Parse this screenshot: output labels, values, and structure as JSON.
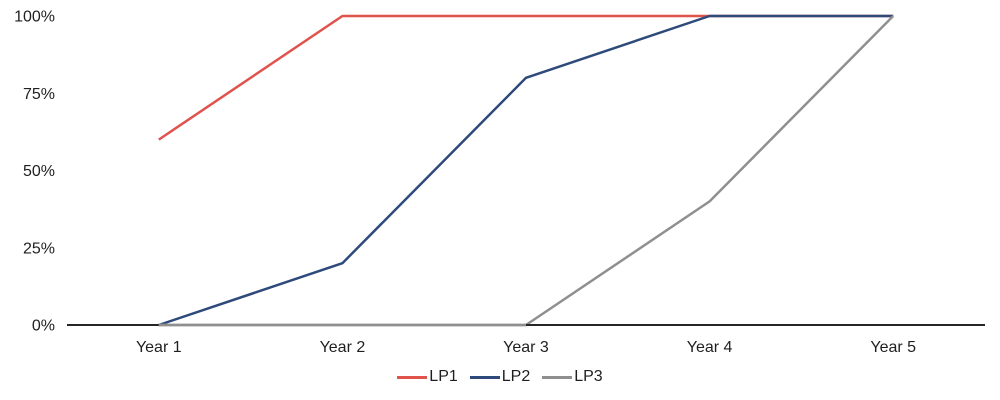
{
  "chart_data": {
    "type": "line",
    "title": "",
    "xlabel": "",
    "ylabel": "",
    "categories": [
      "Year 1",
      "Year 2",
      "Year 3",
      "Year 4",
      "Year 5"
    ],
    "series": [
      {
        "name": "LP1",
        "color": "#E0534C",
        "values": [
          60,
          100,
          100,
          100,
          100
        ]
      },
      {
        "name": "LP2",
        "color": "#2E4A7B",
        "values": [
          0,
          20,
          80,
          100,
          100
        ]
      },
      {
        "name": "LP3",
        "color": "#8F8F8F",
        "values": [
          0,
          0,
          0,
          40,
          100
        ]
      }
    ],
    "ylim": [
      0,
      100
    ],
    "y_ticks": [
      0,
      25,
      50,
      75,
      100
    ],
    "y_tick_labels": [
      "0%",
      "25%",
      "50%",
      "75%",
      "100%"
    ],
    "grid": false,
    "legend_position": "bottom",
    "legend_entries": [
      "LP1",
      "LP2",
      "LP3"
    ]
  },
  "colors": {
    "background": "#FFFFFF",
    "axis_line": "#262626",
    "tick_text": "#1F1F1F"
  }
}
